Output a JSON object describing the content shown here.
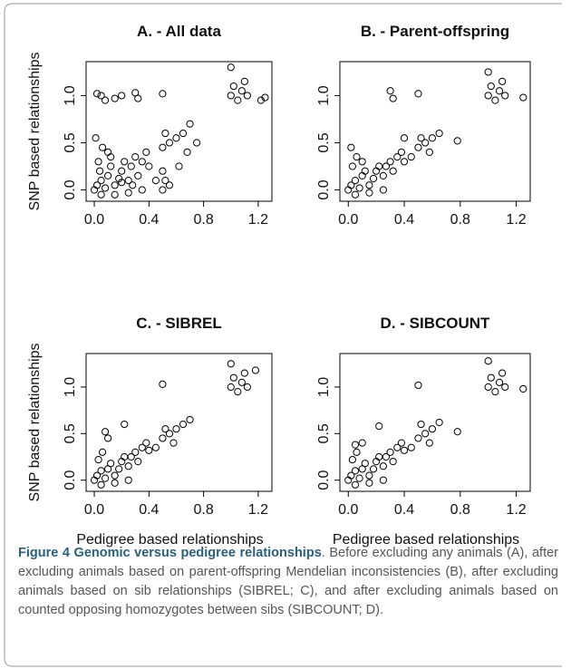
{
  "chart_data": [
    {
      "type": "scatter",
      "title": "A. - All data",
      "y_label": "SNP based relationships",
      "x": [
        0,
        0.02,
        0.05,
        0.08,
        0.1,
        0.12,
        0.15,
        0.18,
        0.2,
        0.22,
        0.25,
        0.27,
        0.3,
        0.32,
        0.35,
        0.38,
        0.4,
        0.03,
        0.06,
        0.01,
        0.1,
        0.05,
        0.15,
        0.25,
        0.35,
        0.45,
        0.5,
        0.52,
        0.5,
        0.55,
        0.5,
        0.55,
        0.6,
        0.65,
        0.52,
        0.7,
        0.75,
        0.62,
        0.68,
        1.0,
        1.02,
        1.05,
        1.08,
        1.1,
        1.0,
        1.12,
        1.25,
        1.22,
        0.02,
        0.05,
        0.08,
        0.15,
        0.3,
        0.32,
        0.5,
        0.2,
        0.04,
        0.12,
        0.2,
        0.28
      ],
      "y": [
        0,
        0.05,
        0.1,
        0.02,
        0.15,
        0.25,
        0.05,
        0.12,
        0.2,
        0.3,
        0.1,
        0.25,
        0.35,
        0.15,
        0.3,
        0.4,
        0.25,
        0.3,
        0.45,
        0.55,
        0.4,
        -0.05,
        -0.05,
        -0.03,
        0,
        0.1,
        0,
        0.1,
        0.2,
        0.05,
        0.45,
        0.5,
        0.55,
        0.6,
        0.6,
        0.7,
        0.5,
        0.25,
        0.4,
        1.0,
        1.1,
        0.95,
        1.05,
        1.15,
        1.3,
        1.0,
        0.98,
        0.95,
        1.02,
        1.0,
        0.95,
        0.97,
        1.03,
        0.97,
        1.02,
        1.0,
        0.2,
        0.35,
        0.08,
        0.05
      ],
      "xlim": [
        -0.06,
        1.3
      ],
      "ylim": [
        -0.12,
        1.36
      ],
      "xticks": [
        {
          "value": 0,
          "label": "0.0"
        },
        0.4,
        0.8,
        1.2
      ],
      "yticks": [
        {
          "value": 0,
          "label": "0.0"
        },
        0.5,
        {
          "value": 1,
          "label": "1.0"
        }
      ]
    },
    {
      "type": "scatter",
      "title": "B. - Parent-offspring",
      "x": [
        0,
        0.02,
        0.05,
        0.08,
        0.1,
        0.12,
        0.15,
        0.18,
        0.2,
        0.22,
        0.25,
        0.27,
        0.3,
        0.32,
        0.35,
        0.38,
        0.4,
        0.03,
        0.06,
        0.1,
        0.05,
        0.15,
        0.25,
        0.45,
        0.5,
        0.55,
        0.6,
        0.52,
        0.58,
        0.65,
        0.78,
        1.0,
        1.02,
        1.05,
        1.08,
        1.1,
        1.0,
        1.12,
        1.25,
        0.3,
        0.32,
        0.5,
        0.02,
        0.4
      ],
      "y": [
        0,
        0.05,
        0.1,
        0.02,
        0.15,
        0.2,
        0.05,
        0.12,
        0.2,
        0.25,
        0.15,
        0.25,
        0.3,
        0.2,
        0.35,
        0.4,
        0.3,
        0.25,
        0.35,
        0.3,
        -0.05,
        -0.03,
        0,
        0.35,
        0.45,
        0.5,
        0.55,
        0.55,
        0.4,
        0.6,
        0.52,
        1.0,
        1.1,
        0.95,
        1.05,
        1.15,
        1.25,
        1.0,
        0.98,
        1.05,
        0.97,
        1.02,
        0.45,
        0.55
      ],
      "xlim": [
        -0.06,
        1.3
      ],
      "ylim": [
        -0.12,
        1.36
      ],
      "xticks": [
        {
          "value": 0,
          "label": "0.0"
        },
        0.4,
        0.8,
        1.2
      ],
      "yticks": [
        {
          "value": 0,
          "label": "0.0"
        },
        0.5,
        {
          "value": 1,
          "label": "1.0"
        }
      ]
    },
    {
      "type": "scatter",
      "title": "C. - SIBREL",
      "y_label": "SNP based relationships",
      "x_label": "Pedigree based relationships",
      "x": [
        0,
        0.02,
        0.05,
        0.08,
        0.1,
        0.12,
        0.15,
        0.18,
        0.2,
        0.22,
        0.25,
        0.27,
        0.3,
        0.32,
        0.35,
        0.38,
        0.4,
        0.03,
        0.06,
        0.1,
        0.05,
        0.15,
        0.25,
        0.45,
        0.5,
        0.55,
        0.6,
        0.52,
        0.58,
        0.65,
        0.7,
        1.0,
        1.02,
        1.05,
        1.08,
        1.1,
        1.0,
        1.12,
        1.18,
        0.5,
        0.08,
        0.22
      ],
      "y": [
        0,
        0.05,
        0.1,
        0.02,
        0.12,
        0.18,
        0.05,
        0.12,
        0.2,
        0.25,
        0.15,
        0.25,
        0.3,
        0.2,
        0.35,
        0.4,
        0.32,
        0.22,
        0.3,
        0.45,
        -0.05,
        -0.03,
        0,
        0.35,
        0.45,
        0.5,
        0.55,
        0.55,
        0.4,
        0.6,
        0.65,
        1.0,
        1.1,
        0.95,
        1.05,
        1.15,
        1.25,
        1.0,
        1.18,
        1.03,
        0.52,
        0.6
      ],
      "xlim": [
        -0.06,
        1.3
      ],
      "ylim": [
        -0.12,
        1.36
      ],
      "xticks": [
        {
          "value": 0,
          "label": "0.0"
        },
        0.4,
        0.8,
        1.2
      ],
      "yticks": [
        {
          "value": 0,
          "label": "0.0"
        },
        0.5,
        {
          "value": 1,
          "label": "1.0"
        }
      ]
    },
    {
      "type": "scatter",
      "title": "D. - SIBCOUNT",
      "x_label": "Pedigree based relationships",
      "x": [
        0,
        0.02,
        0.05,
        0.08,
        0.1,
        0.12,
        0.15,
        0.18,
        0.2,
        0.22,
        0.25,
        0.27,
        0.3,
        0.32,
        0.35,
        0.38,
        0.4,
        0.03,
        0.06,
        0.1,
        0.05,
        0.15,
        0.25,
        0.45,
        0.5,
        0.55,
        0.6,
        0.52,
        0.58,
        0.65,
        0.78,
        1.0,
        1.02,
        1.05,
        1.08,
        1.1,
        1.0,
        1.12,
        1.25,
        0.5,
        0.22,
        0.05
      ],
      "y": [
        0,
        0.05,
        0.1,
        0.02,
        0.12,
        0.18,
        0.05,
        0.12,
        0.2,
        0.25,
        0.15,
        0.25,
        0.3,
        0.2,
        0.35,
        0.4,
        0.32,
        0.22,
        0.3,
        0.4,
        -0.05,
        -0.03,
        0,
        0.35,
        0.45,
        0.5,
        0.55,
        0.6,
        0.4,
        0.62,
        0.52,
        1.0,
        1.1,
        0.95,
        1.05,
        1.15,
        1.28,
        1.0,
        0.98,
        1.02,
        0.58,
        0.38
      ],
      "xlim": [
        -0.06,
        1.3
      ],
      "ylim": [
        -0.12,
        1.36
      ],
      "xticks": [
        {
          "value": 0,
          "label": "0.0"
        },
        0.4,
        0.8,
        1.2
      ],
      "yticks": [
        {
          "value": 0,
          "label": "0.0"
        },
        0.5,
        {
          "value": 1,
          "label": "1.0"
        }
      ]
    }
  ],
  "caption": {
    "heading": "Figure 4 Genomic versus pedigree relationships",
    "text": ". Before excluding any animals (A), after excluding animals based on parent-offspring Mendelian inconsistencies (B), after excluding animals based on sib relationships (SIBREL; C), and after excluding animals based on counted opposing homozygotes between sibs (SIBCOUNT; D)."
  }
}
